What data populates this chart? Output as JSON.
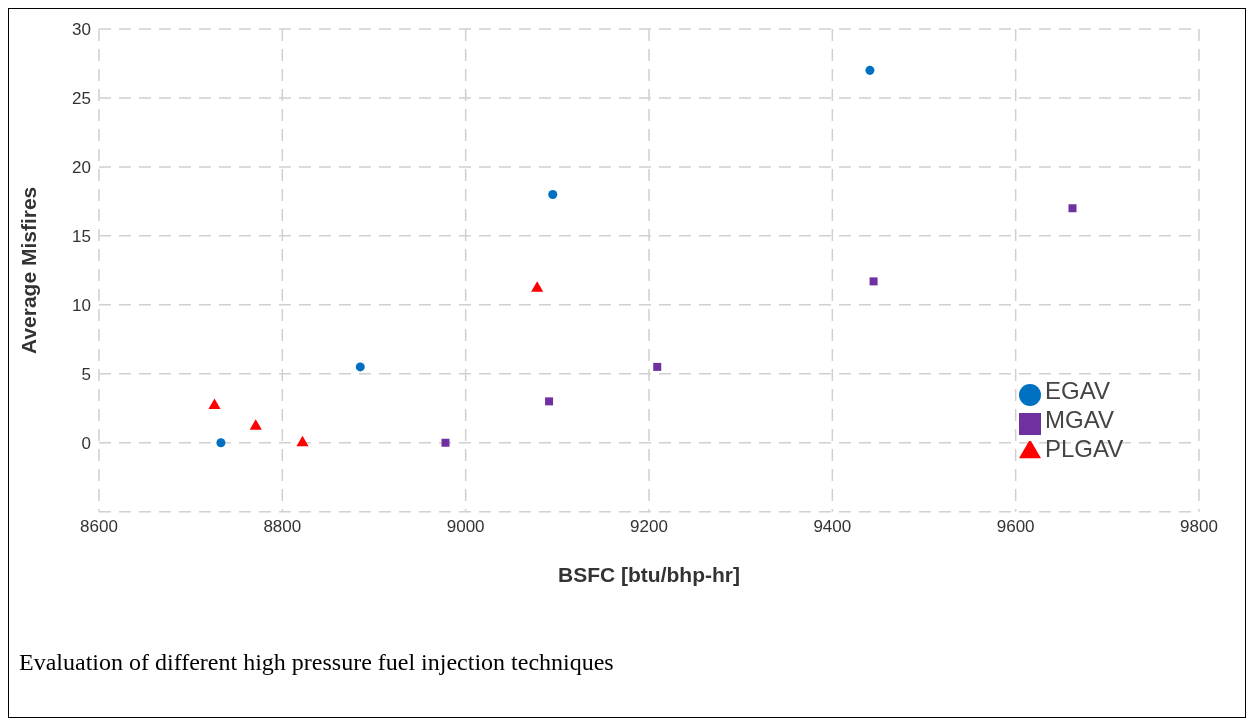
{
  "chart_data": {
    "type": "scatter",
    "xlabel": "BSFC [btu/bhp-hr]",
    "ylabel": "Average Misfires",
    "xlim": [
      8600,
      9800
    ],
    "xticks": [
      8600,
      8800,
      9000,
      9200,
      9400,
      9600,
      9800
    ],
    "ylim": [
      -5,
      30
    ],
    "yticks": [
      {
        "value": -5,
        "label": null
      },
      0,
      5,
      10,
      15,
      20,
      25,
      30
    ],
    "grid": true,
    "legend": "bottom right",
    "series": [
      {
        "name": "EGAV",
        "color": "#0070c0",
        "marker": "circle",
        "x": [
          8733,
          8885,
          9095,
          9441
        ],
        "values": [
          0,
          5.5,
          18,
          27
        ]
      },
      {
        "name": "MGAV",
        "color": "#7030a0",
        "marker": "square",
        "x": [
          8978,
          9091,
          9209,
          9445,
          9662
        ],
        "values": [
          0,
          3,
          5.5,
          11.7,
          17
        ]
      },
      {
        "name": "PLGAV",
        "color": "#ff0000",
        "marker": "triangle",
        "x": [
          8726,
          8771,
          8822,
          9078
        ],
        "values": [
          2.7,
          1.2,
          0,
          11.2
        ]
      }
    ],
    "annotations": [
      "Evaluation of different high pressure fuel injection techniques"
    ]
  }
}
